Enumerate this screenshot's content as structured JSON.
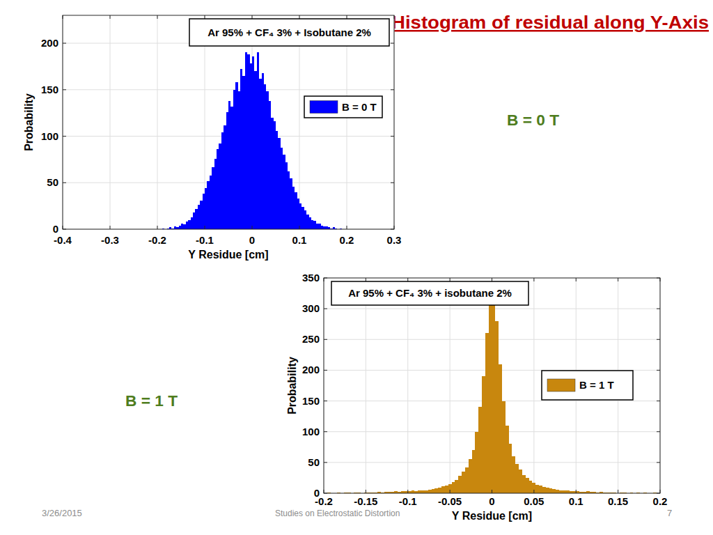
{
  "slide": {
    "title": "Histogram of residual along Y-Axis",
    "labels": [
      "B = 0 T",
      "B = 1 T"
    ],
    "footer": {
      "date": "3/26/2015",
      "text": "Studies on Electrostatic Distortion",
      "page": "7"
    }
  },
  "chart_data": [
    {
      "type": "histogram",
      "title": "Ar 95% + CF₄ 3% + Isobutane 2%",
      "x_label": "Y Residue [cm]",
      "y_label": "Probability",
      "bins": [
        -0.2,
        -0.195,
        -0.19,
        -0.185,
        -0.18,
        -0.175,
        -0.17,
        -0.165,
        -0.16,
        -0.155,
        -0.15,
        -0.145,
        -0.14,
        -0.135,
        -0.13,
        -0.125,
        -0.12,
        -0.115,
        -0.11,
        -0.105,
        -0.1,
        -0.095,
        -0.09,
        -0.085,
        -0.08,
        -0.075,
        -0.07,
        -0.065,
        -0.06,
        -0.055,
        -0.05,
        -0.045,
        -0.04,
        -0.035,
        -0.03,
        -0.025,
        -0.02,
        -0.015,
        -0.01,
        -0.005,
        0,
        0.005,
        0.01,
        0.015,
        0.02,
        0.025,
        0.03,
        0.035,
        0.04,
        0.045,
        0.05,
        0.055,
        0.06,
        0.065,
        0.07,
        0.075,
        0.08,
        0.085,
        0.09,
        0.095,
        0.1,
        0.105,
        0.11,
        0.115,
        0.12,
        0.125,
        0.13,
        0.135,
        0.14,
        0.145,
        0.15,
        0.155,
        0.16,
        0.165,
        0.17,
        0.175,
        0.18,
        0.185,
        0.19,
        0.195,
        0.2
      ],
      "series": [
        {
          "name": "B = 0 T",
          "color": "#0000ff",
          "values": [
            0,
            0,
            1,
            0,
            1,
            2,
            1,
            3,
            2,
            4,
            6,
            5,
            8,
            10,
            13,
            18,
            22,
            26,
            31,
            38,
            44,
            52,
            58,
            67,
            76,
            86,
            92,
            104,
            112,
            126,
            138,
            132,
            150,
            158,
            148,
            172,
            165,
            190,
            188,
            178,
            186,
            170,
            190,
            162,
            168,
            156,
            148,
            138,
            120,
            116,
            106,
            98,
            88,
            80,
            72,
            62,
            55,
            46,
            40,
            33,
            28,
            24,
            20,
            16,
            13,
            10,
            9,
            6,
            6,
            4,
            3,
            3,
            2,
            1,
            2,
            1,
            0,
            1,
            0,
            0
          ]
        }
      ],
      "xlim": [
        -0.4,
        0.3
      ],
      "xticks": [
        -0.4,
        -0.3,
        -0.2,
        -0.1,
        0,
        0.1,
        0.2,
        0.3
      ],
      "ylim": [
        0,
        230
      ],
      "yticks": [
        0,
        50,
        100,
        150,
        200
      ],
      "grid": true,
      "legend": "right"
    },
    {
      "type": "histogram",
      "title": "Ar 95% + CF₄ 3% + isobutane 2%",
      "x_label": "Y Residue [cm]",
      "y_label": "Probability",
      "bins": [
        -0.2,
        -0.196,
        -0.192,
        -0.188,
        -0.184,
        -0.18,
        -0.176,
        -0.172,
        -0.168,
        -0.164,
        -0.16,
        -0.156,
        -0.152,
        -0.148,
        -0.144,
        -0.14,
        -0.136,
        -0.132,
        -0.128,
        -0.124,
        -0.12,
        -0.116,
        -0.112,
        -0.108,
        -0.104,
        -0.1,
        -0.096,
        -0.092,
        -0.088,
        -0.084,
        -0.08,
        -0.076,
        -0.072,
        -0.068,
        -0.064,
        -0.06,
        -0.056,
        -0.052,
        -0.048,
        -0.044,
        -0.04,
        -0.036,
        -0.032,
        -0.028,
        -0.024,
        -0.02,
        -0.016,
        -0.012,
        -0.008,
        -0.004,
        0,
        0.004,
        0.008,
        0.012,
        0.016,
        0.02,
        0.024,
        0.028,
        0.032,
        0.036,
        0.04,
        0.044,
        0.048,
        0.052,
        0.056,
        0.06,
        0.064,
        0.068,
        0.072,
        0.076,
        0.08,
        0.084,
        0.088,
        0.092,
        0.096,
        0.1,
        0.104,
        0.108,
        0.112,
        0.116,
        0.12,
        0.124,
        0.128,
        0.132,
        0.136,
        0.14,
        0.144,
        0.148,
        0.152,
        0.156,
        0.16,
        0.164,
        0.168,
        0.172,
        0.176,
        0.18,
        0.184,
        0.188,
        0.192,
        0.196,
        0.2
      ],
      "series": [
        {
          "name": "B = 1 T",
          "color": "#c8870e",
          "values": [
            0,
            1,
            0,
            0,
            1,
            0,
            1,
            1,
            0,
            1,
            1,
            0,
            1,
            1,
            1,
            1,
            2,
            1,
            2,
            2,
            2,
            3,
            2,
            3,
            3,
            3,
            4,
            3,
            4,
            5,
            5,
            6,
            7,
            8,
            9,
            11,
            13,
            15,
            18,
            22,
            28,
            35,
            42,
            55,
            70,
            100,
            140,
            190,
            260,
            310,
            320,
            280,
            210,
            150,
            110,
            80,
            60,
            48,
            38,
            30,
            25,
            20,
            17,
            14,
            12,
            10,
            9,
            8,
            7,
            6,
            5,
            4,
            4,
            3,
            3,
            3,
            2,
            2,
            3,
            2,
            2,
            1,
            2,
            1,
            1,
            1,
            1,
            0,
            1,
            1,
            0,
            1,
            0,
            1,
            0,
            1,
            0,
            0,
            1,
            0
          ]
        }
      ],
      "xlim": [
        -0.2,
        0.2
      ],
      "xticks": [
        -0.2,
        -0.15,
        -0.1,
        -0.05,
        0,
        0.05,
        0.1,
        0.15,
        0.2
      ],
      "ylim": [
        0,
        350
      ],
      "yticks": [
        0,
        50,
        100,
        150,
        200,
        250,
        300,
        350
      ],
      "grid": true,
      "legend": "right"
    }
  ]
}
